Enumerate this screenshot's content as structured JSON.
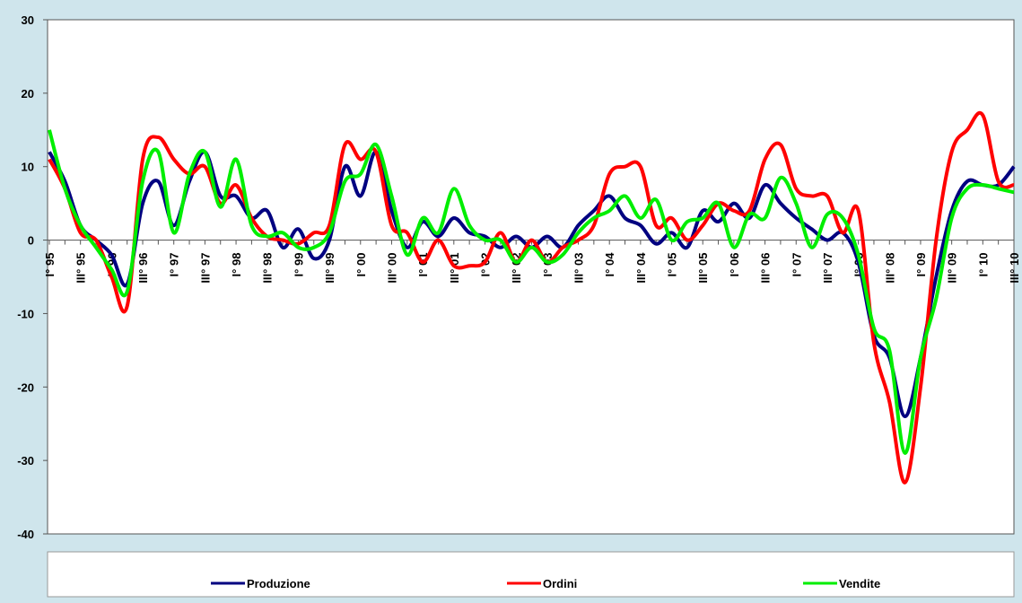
{
  "chart_data": {
    "type": "line",
    "categories": [
      "I° 95",
      null,
      "III° 95",
      null,
      "I° 96",
      null,
      "III° 96",
      null,
      "I° 97",
      null,
      "III° 97",
      null,
      "I° 98",
      null,
      "III° 98",
      null,
      "I° 99",
      null,
      "III° 99",
      null,
      "I° 00",
      null,
      "III° 00",
      null,
      "I° 01",
      null,
      "III° 01",
      null,
      "I° 02",
      null,
      "III° 02",
      null,
      "I° 03",
      null,
      "III° 03",
      null,
      "I° 04",
      null,
      "III° 04",
      null,
      "I° 05",
      null,
      "III° 05",
      null,
      "I° 06",
      null,
      "III° 06",
      null,
      "I° 07",
      null,
      "III° 07",
      null,
      "I° 08",
      null,
      "III° 08",
      null,
      "I° 09",
      null,
      "III° 09",
      null,
      "I° 10",
      null,
      "III° 10"
    ],
    "series": [
      {
        "name": "Produzione",
        "color": "#000080",
        "values": [
          12,
          8,
          2,
          0,
          -2,
          -6,
          5,
          8,
          2,
          8,
          12,
          6,
          6,
          3,
          4,
          -1,
          1.5,
          -2.5,
          0,
          10,
          6,
          12,
          4,
          -1,
          2.5,
          0.5,
          3,
          1,
          0.5,
          -1,
          0.5,
          -1,
          0.5,
          -1,
          2,
          4,
          6,
          3,
          2,
          -0.5,
          1,
          -1,
          4,
          2.5,
          5,
          3,
          7.5,
          5,
          3,
          1.5,
          0,
          1,
          -3,
          -13,
          -16,
          -24,
          -16,
          -5,
          4,
          8,
          7.5,
          7.5,
          10
        ]
      },
      {
        "name": "Ordini",
        "color": "#ff0000",
        "values": [
          11,
          7,
          1,
          0,
          -5,
          -9,
          11,
          14,
          11,
          9,
          10,
          5,
          7.5,
          3,
          0.5,
          0,
          -0.5,
          1,
          2,
          13,
          11,
          12,
          2,
          1,
          -3,
          0,
          -3.5,
          -3.5,
          -3,
          1,
          -3,
          0,
          -3,
          -1,
          0,
          2,
          9,
          10,
          10,
          2,
          3,
          0,
          2,
          5,
          4,
          4,
          11,
          13,
          7,
          6,
          6,
          1,
          4,
          -14,
          -22,
          -33,
          -20,
          0,
          12,
          15,
          17,
          8,
          7.5
        ]
      },
      {
        "name": "Vendite",
        "color": "#00ee00",
        "values": [
          15,
          7,
          2,
          -1,
          -4,
          -7,
          8,
          12,
          1,
          9,
          12,
          4.5,
          11,
          2,
          0.5,
          1,
          -1,
          -1,
          1,
          8,
          9,
          13,
          6,
          -2,
          3,
          1,
          7,
          2,
          0,
          0,
          -3,
          -1,
          -3,
          -2,
          1,
          3,
          4,
          6,
          3,
          5.5,
          0,
          2.5,
          3,
          5,
          -1,
          3.5,
          3,
          8.5,
          5,
          -1,
          3.5,
          3,
          -2,
          -12,
          -15,
          -29,
          -16,
          -8,
          3,
          7,
          7.5,
          7,
          6.5
        ]
      }
    ],
    "ylim": [
      -40,
      30
    ],
    "yticks": [
      -40,
      -30,
      -20,
      -10,
      0,
      10,
      20,
      30
    ]
  }
}
